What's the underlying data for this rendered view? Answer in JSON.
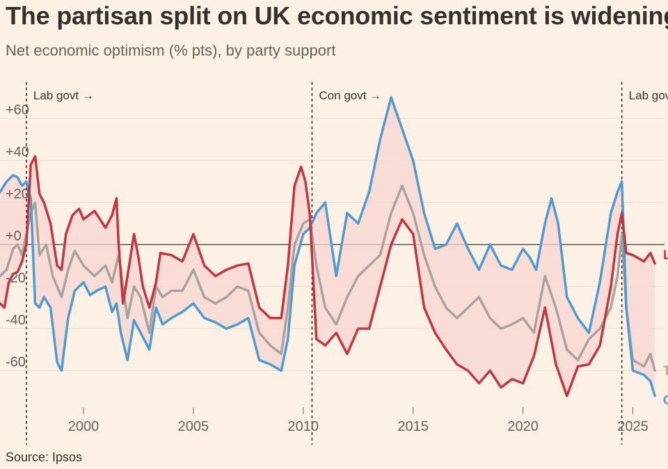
{
  "title": "The partisan split on UK economic sentiment is widening",
  "subtitle": "Net economic optimism (% pts), by party support",
  "source": "Source: Ipsos",
  "colors": {
    "background": "#fcf1e4",
    "lab": "#c2363f",
    "con": "#4e9bd0",
    "total": "#a7a3a0",
    "band": "#f9d4d2"
  },
  "chart_data": {
    "type": "line",
    "xlim": [
      1996.2,
      2026.6
    ],
    "ylim": [
      -82,
      80
    ],
    "x_ticks": [
      2000,
      2005,
      2010,
      2015,
      2020,
      2025
    ],
    "x_tick_labels": [
      "2000",
      "2005",
      "2010",
      "2015",
      "2020",
      "2025"
    ],
    "y_ticks": [
      60,
      40,
      20,
      0,
      -20,
      -40,
      -60
    ],
    "y_tick_labels": [
      "+60",
      "+40",
      "+20",
      "+0",
      "-20",
      "-40",
      "-60"
    ],
    "grid": true,
    "government_changes": [
      {
        "x": 1997.4,
        "label": "Lab govt →"
      },
      {
        "x": 2010.4,
        "label": "Con govt →"
      },
      {
        "x": 2024.5,
        "label": "Lab govt →"
      }
    ],
    "series": [
      {
        "name": "Lab",
        "color": "#c2363f",
        "x": [
          1996.2,
          1996.4,
          1996.6,
          1996.8,
          1997.0,
          1997.2,
          1997.4,
          1997.6,
          1997.8,
          1998.0,
          1998.2,
          1998.5,
          1998.8,
          1999.0,
          1999.2,
          1999.5,
          1999.8,
          2000.0,
          2000.5,
          2001.0,
          2001.3,
          2001.5,
          2001.6,
          2001.8,
          2002.0,
          2002.3,
          2002.5,
          2002.7,
          2003.0,
          2003.3,
          2003.5,
          2004.0,
          2004.5,
          2005.0,
          2005.5,
          2006.0,
          2006.5,
          2007.0,
          2007.5,
          2008.0,
          2008.5,
          2009.0,
          2009.3,
          2009.6,
          2009.9,
          2010.1,
          2010.3,
          2010.6,
          2011.0,
          2011.5,
          2012.0,
          2012.5,
          2013.0,
          2013.5,
          2014.0,
          2014.5,
          2015.0,
          2015.5,
          2016.0,
          2016.5,
          2017.0,
          2017.5,
          2018.0,
          2018.5,
          2019.0,
          2019.5,
          2020.0,
          2020.5,
          2021.0,
          2021.5,
          2022.0,
          2022.5,
          2023.0,
          2023.5,
          2024.0,
          2024.3,
          2024.5,
          2024.7,
          2025.0,
          2025.5,
          2025.8,
          2026.0
        ],
        "values": [
          -28,
          -30,
          -18,
          -14,
          -13,
          -8,
          0,
          38,
          42,
          24,
          20,
          10,
          -10,
          -12,
          5,
          14,
          17,
          12,
          16,
          8,
          14,
          22,
          0,
          -28,
          -15,
          5,
          -6,
          -20,
          -30,
          -18,
          -4,
          -5,
          -8,
          5,
          -10,
          -15,
          -12,
          -10,
          -9,
          -30,
          -35,
          -35,
          -10,
          28,
          37,
          30,
          14,
          -45,
          -48,
          -42,
          -52,
          -40,
          -40,
          -20,
          0,
          12,
          5,
          -30,
          -42,
          -50,
          -57,
          -60,
          -66,
          -60,
          -68,
          -64,
          -66,
          -53,
          -30,
          -57,
          -72,
          -58,
          -57,
          -48,
          -20,
          5,
          15,
          -4,
          -5,
          -8,
          -4,
          -9
        ]
      },
      {
        "name": "Con",
        "color": "#4e9bd0",
        "x": [
          1996.2,
          1996.5,
          1996.8,
          1997.0,
          1997.2,
          1997.4,
          1997.6,
          1997.8,
          1998.0,
          1998.2,
          1998.5,
          1998.8,
          1999.0,
          1999.3,
          1999.6,
          2000.0,
          2000.3,
          2000.6,
          2001.0,
          2001.3,
          2001.5,
          2001.7,
          2002.0,
          2002.3,
          2002.6,
          2003.0,
          2003.3,
          2003.6,
          2004.0,
          2004.5,
          2005.0,
          2005.5,
          2006.0,
          2006.5,
          2007.0,
          2007.5,
          2008.0,
          2008.5,
          2009.0,
          2009.3,
          2009.6,
          2010.0,
          2010.3,
          2010.6,
          2011.0,
          2011.5,
          2012.0,
          2012.5,
          2013.0,
          2013.5,
          2014.0,
          2014.5,
          2015.0,
          2015.5,
          2016.0,
          2016.5,
          2017.0,
          2017.5,
          2018.0,
          2018.5,
          2019.0,
          2019.5,
          2020.0,
          2020.3,
          2020.6,
          2021.0,
          2021.3,
          2021.6,
          2022.0,
          2022.5,
          2023.0,
          2023.5,
          2024.0,
          2024.3,
          2024.5,
          2024.7,
          2025.0,
          2025.5,
          2025.8,
          2026.0
        ],
        "values": [
          25,
          30,
          33,
          32,
          28,
          30,
          22,
          -28,
          -30,
          -25,
          -30,
          -56,
          -60,
          -35,
          -22,
          -18,
          -24,
          -22,
          -20,
          -32,
          -28,
          -42,
          -55,
          -36,
          -42,
          -50,
          -30,
          -38,
          -35,
          -32,
          -28,
          -35,
          -37,
          -40,
          -38,
          -35,
          -55,
          -57,
          -60,
          -45,
          -10,
          5,
          8,
          15,
          20,
          -15,
          15,
          10,
          25,
          50,
          70,
          55,
          40,
          15,
          -2,
          0,
          10,
          -2,
          -12,
          0,
          -10,
          -12,
          -2,
          -6,
          -12,
          10,
          22,
          10,
          -25,
          -35,
          -42,
          -18,
          15,
          25,
          30,
          -30,
          -60,
          -62,
          -65,
          -72
        ]
      },
      {
        "name": "Total",
        "color": "#a7a3a0",
        "x": [
          1996.2,
          1996.5,
          1996.8,
          1997.0,
          1997.2,
          1997.4,
          1997.6,
          1997.8,
          1998.0,
          1998.3,
          1998.6,
          1999.0,
          1999.3,
          1999.6,
          2000.0,
          2000.5,
          2001.0,
          2001.3,
          2001.6,
          2002.0,
          2002.3,
          2002.6,
          2003.0,
          2003.3,
          2003.6,
          2004.0,
          2004.5,
          2005.0,
          2005.5,
          2006.0,
          2006.5,
          2007.0,
          2007.5,
          2008.0,
          2008.5,
          2009.0,
          2009.3,
          2009.6,
          2010.0,
          2010.3,
          2010.6,
          2011.0,
          2011.5,
          2012.0,
          2012.5,
          2013.0,
          2013.5,
          2014.0,
          2014.5,
          2015.0,
          2015.5,
          2016.0,
          2016.5,
          2017.0,
          2017.5,
          2018.0,
          2018.5,
          2019.0,
          2019.5,
          2020.0,
          2020.5,
          2021.0,
          2021.5,
          2022.0,
          2022.5,
          2023.0,
          2023.5,
          2024.0,
          2024.3,
          2024.5,
          2024.7,
          2025.0,
          2025.5,
          2025.8,
          2026.0
        ],
        "values": [
          -15,
          -12,
          -2,
          0,
          -5,
          5,
          15,
          20,
          -5,
          0,
          -15,
          -25,
          -12,
          -3,
          -10,
          -15,
          -10,
          -18,
          -5,
          -35,
          -20,
          -25,
          -42,
          -20,
          -25,
          -22,
          -22,
          -12,
          -25,
          -28,
          -25,
          -20,
          -22,
          -42,
          -48,
          -52,
          -30,
          0,
          10,
          12,
          -10,
          -30,
          -38,
          -25,
          -15,
          -10,
          -5,
          15,
          28,
          15,
          -5,
          -20,
          -30,
          -35,
          -30,
          -25,
          -35,
          -40,
          -38,
          -35,
          -42,
          -15,
          -30,
          -50,
          -55,
          -45,
          -40,
          -30,
          -15,
          5,
          -30,
          -55,
          -58,
          -52,
          -60
        ]
      }
    ]
  }
}
